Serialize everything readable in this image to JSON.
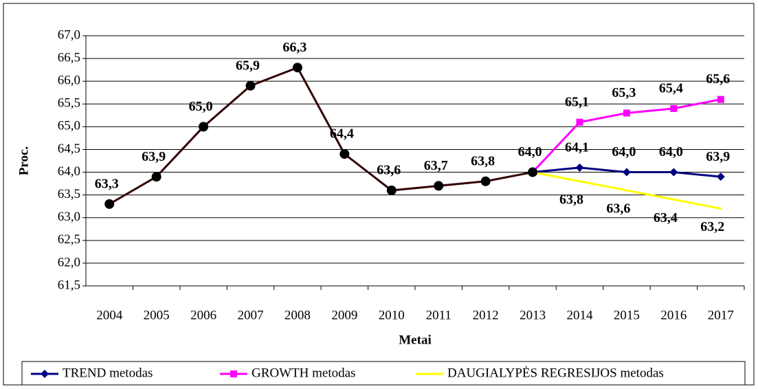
{
  "chart_data": {
    "type": "line",
    "ylabel": "Proc.",
    "xlabel": "Metai",
    "categories": [
      "2004",
      "2005",
      "2006",
      "2007",
      "2008",
      "2009",
      "2010",
      "2011",
      "2012",
      "2013",
      "2014",
      "2015",
      "2016",
      "2017"
    ],
    "ylim": [
      61.5,
      67.0
    ],
    "yticks": [
      {
        "value": 61.5,
        "label": "61,5"
      },
      {
        "value": 62.0,
        "label": "62,0"
      },
      {
        "value": 62.5,
        "label": "62,5"
      },
      {
        "value": 63.0,
        "label": "63,0"
      },
      {
        "value": 63.5,
        "label": "63,5"
      },
      {
        "value": 64.0,
        "label": "64,0"
      },
      {
        "value": 64.5,
        "label": "64,5"
      },
      {
        "value": 65.0,
        "label": "65,0"
      },
      {
        "value": 65.5,
        "label": "65,5"
      },
      {
        "value": 66.0,
        "label": "66,0"
      },
      {
        "value": 66.5,
        "label": "66,5"
      },
      {
        "value": 67.0,
        "label": "67,0"
      }
    ],
    "grid": true,
    "legend": "bottom",
    "series": [
      {
        "name": "TREND metodas",
        "color": "#000080",
        "marker": "diamond",
        "values": [
          null,
          null,
          null,
          null,
          null,
          null,
          null,
          null,
          null,
          64.0,
          64.1,
          64.0,
          64.0,
          63.9
        ],
        "value_labels": [
          null,
          null,
          null,
          null,
          null,
          null,
          null,
          null,
          null,
          null,
          "64,1",
          "64,0",
          "64,0",
          "63,9"
        ]
      },
      {
        "name": "GROWTH metodas",
        "color": "#ff00ff",
        "marker": "square",
        "values": [
          null,
          null,
          null,
          null,
          null,
          null,
          null,
          null,
          null,
          64.0,
          65.1,
          65.3,
          65.4,
          65.6
        ],
        "value_labels": [
          null,
          null,
          null,
          null,
          null,
          null,
          null,
          null,
          null,
          null,
          "65,1",
          "65,3",
          "65,4",
          "65,6"
        ]
      },
      {
        "name": "DAUGIALYPĖS REGRESIJOS metodas",
        "color": "#ffff00",
        "marker": "none",
        "values": [
          null,
          null,
          null,
          null,
          null,
          null,
          null,
          null,
          null,
          64.0,
          63.8,
          63.6,
          63.4,
          63.2
        ],
        "value_labels": [
          null,
          null,
          null,
          null,
          null,
          null,
          null,
          null,
          null,
          null,
          "63,8",
          "63,6",
          "63,4",
          "63,2"
        ]
      },
      {
        "color": "#330000",
        "marker": "circle",
        "values": [
          63.3,
          63.9,
          65.0,
          65.9,
          66.3,
          64.4,
          63.6,
          63.7,
          63.8,
          64.0,
          null,
          null,
          null,
          null
        ],
        "value_labels": [
          "63,3",
          "63,9",
          "65,0",
          "65,9",
          "66,3",
          "64,4",
          "63,6",
          "63,7",
          "63,8",
          "64,0",
          null,
          null,
          null,
          null
        ]
      }
    ]
  }
}
